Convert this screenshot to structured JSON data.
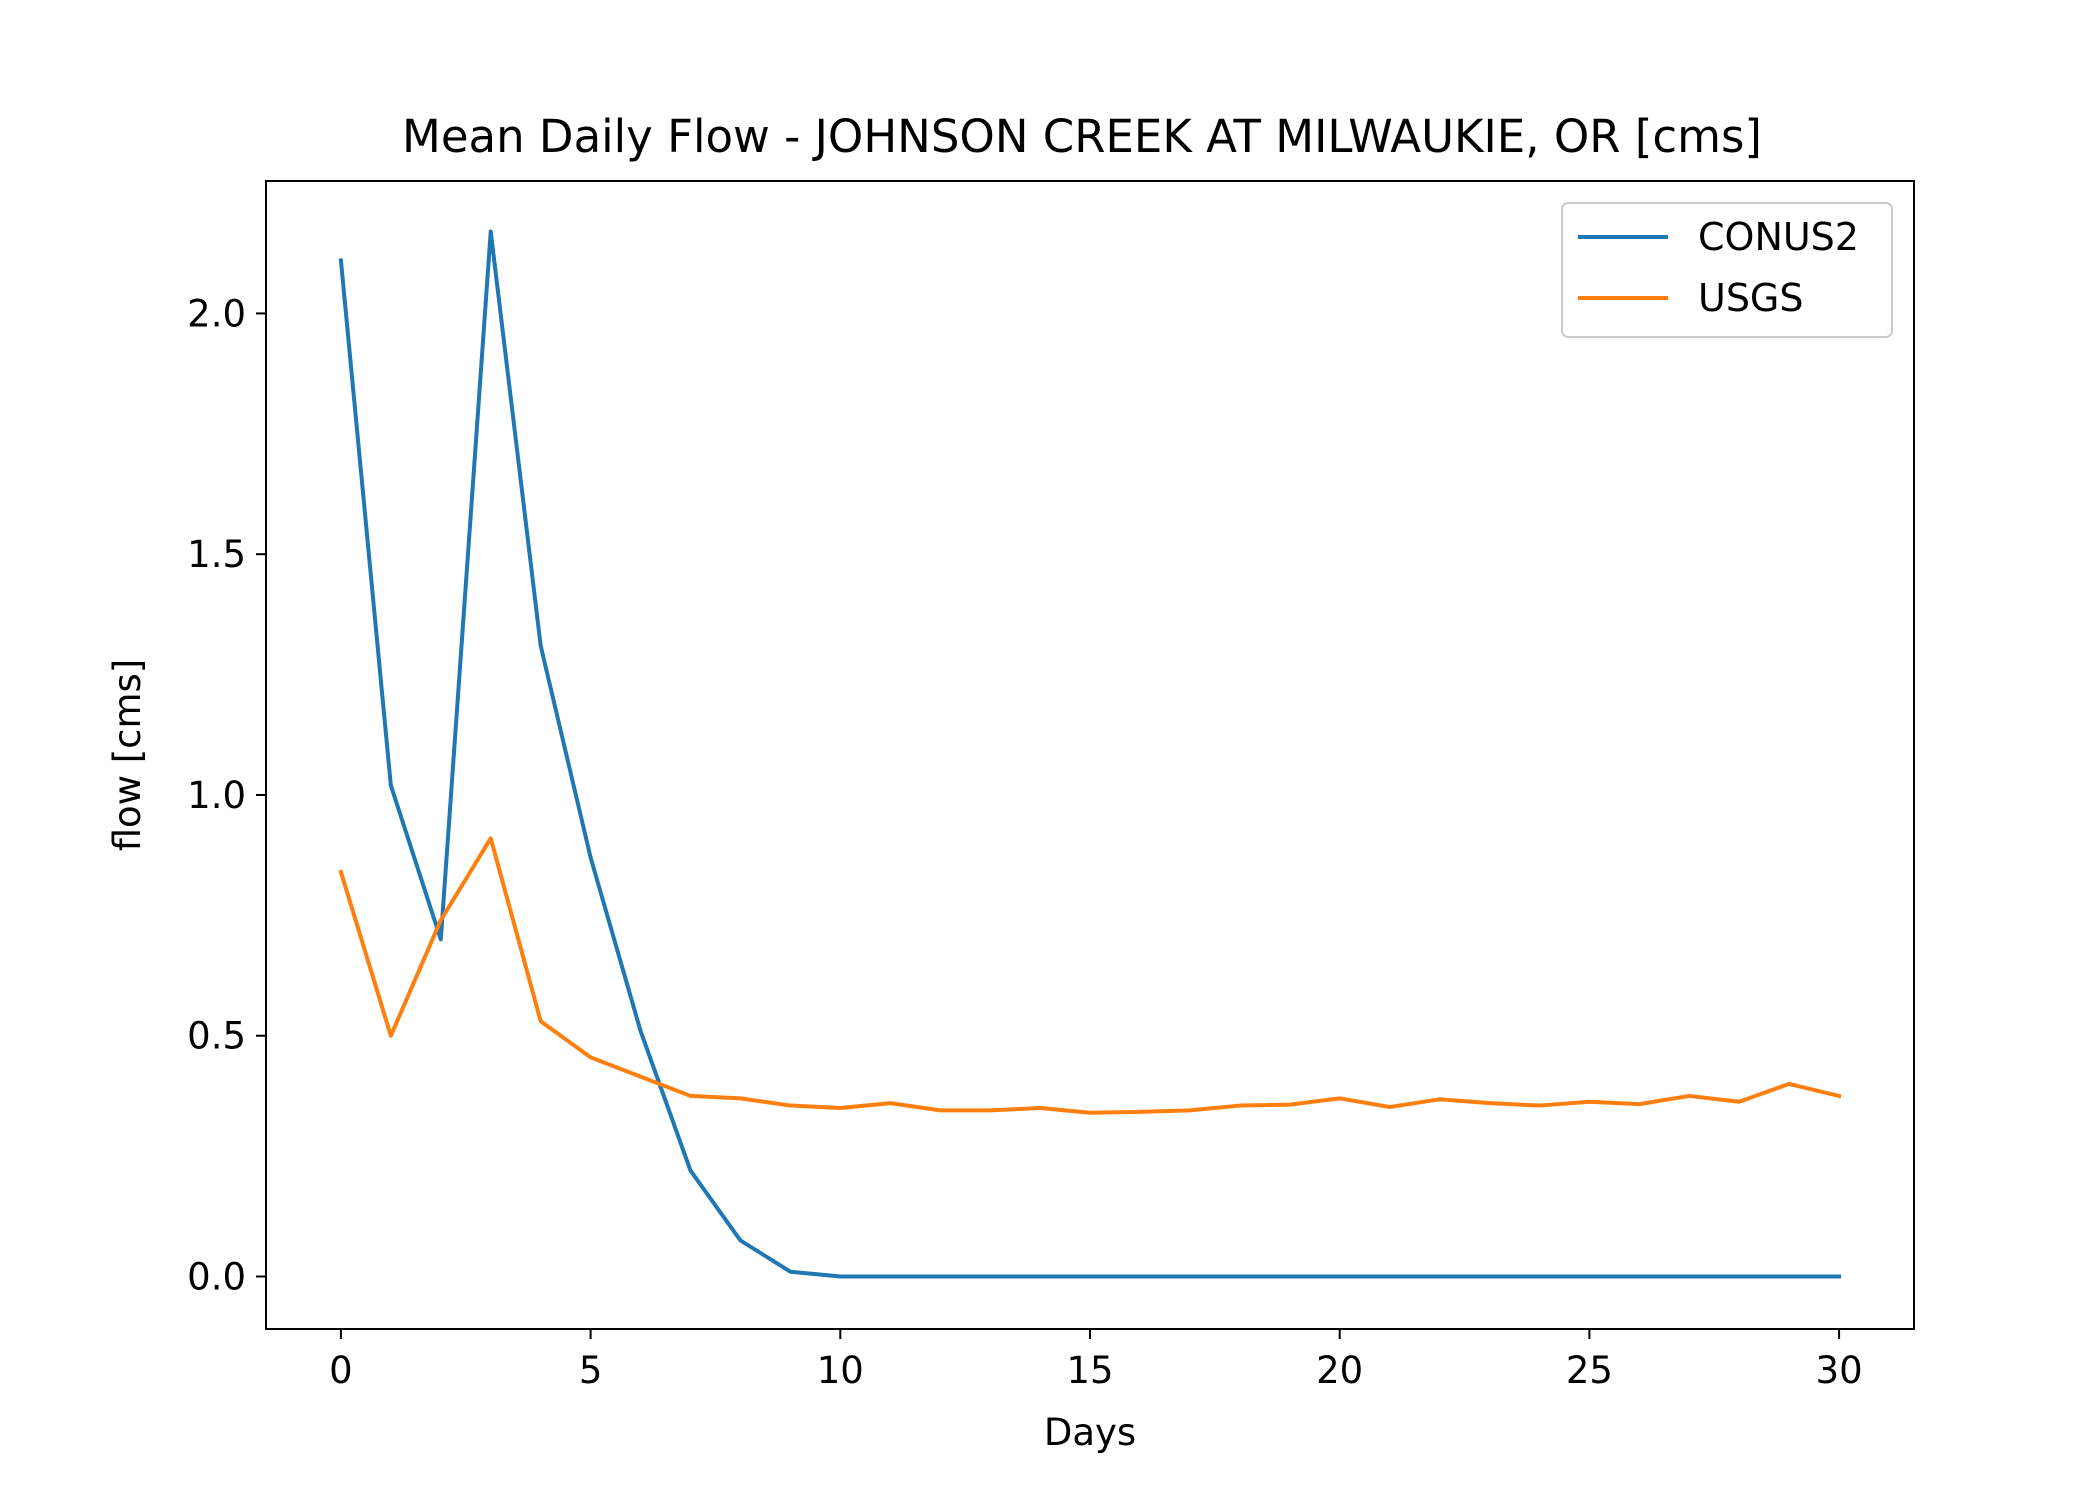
{
  "chart_data": {
    "type": "line",
    "title": "Mean Daily Flow - JOHNSON CREEK AT MILWAUKIE, OR [cms]",
    "xlabel": "Days",
    "ylabel": "flow [cms]",
    "xlim": [
      -1.5,
      31.5
    ],
    "ylim": [
      -0.109,
      2.275
    ],
    "x_ticks": [
      0,
      5,
      10,
      15,
      20,
      25,
      30
    ],
    "y_ticks": [
      0.0,
      0.5,
      1.0,
      1.5,
      2.0
    ],
    "x_tick_labels": [
      "0",
      "5",
      "10",
      "15",
      "20",
      "25",
      "30"
    ],
    "y_tick_labels": [
      "0.0",
      "0.5",
      "1.0",
      "1.5",
      "2.0"
    ],
    "grid": false,
    "legend_position": "top-right",
    "x": [
      0,
      1,
      2,
      3,
      4,
      5,
      6,
      7,
      8,
      9,
      10,
      11,
      12,
      13,
      14,
      15,
      16,
      17,
      18,
      19,
      20,
      21,
      22,
      23,
      24,
      25,
      26,
      27,
      28,
      29,
      30
    ],
    "series": [
      {
        "name": "CONUS2",
        "color": "#1f77b4",
        "values": [
          2.11,
          1.02,
          0.7,
          2.17,
          1.31,
          0.87,
          0.51,
          0.22,
          0.075,
          0.01,
          0.0,
          0.0,
          0.0,
          0.0,
          0.0,
          0.0,
          0.0,
          0.0,
          0.0,
          0.0,
          0.0,
          0.0,
          0.0,
          0.0,
          0.0,
          0.0,
          0.0,
          0.0,
          0.0,
          0.0,
          0.0
        ]
      },
      {
        "name": "USGS",
        "color": "#ff7f0e",
        "values": [
          0.84,
          0.5,
          0.74,
          0.91,
          0.53,
          0.455,
          0.415,
          0.375,
          0.37,
          0.355,
          0.35,
          0.36,
          0.345,
          0.345,
          0.35,
          0.34,
          0.342,
          0.345,
          0.355,
          0.357,
          0.37,
          0.352,
          0.368,
          0.36,
          0.355,
          0.363,
          0.358,
          0.375,
          0.363,
          0.4,
          0.375
        ]
      }
    ]
  }
}
